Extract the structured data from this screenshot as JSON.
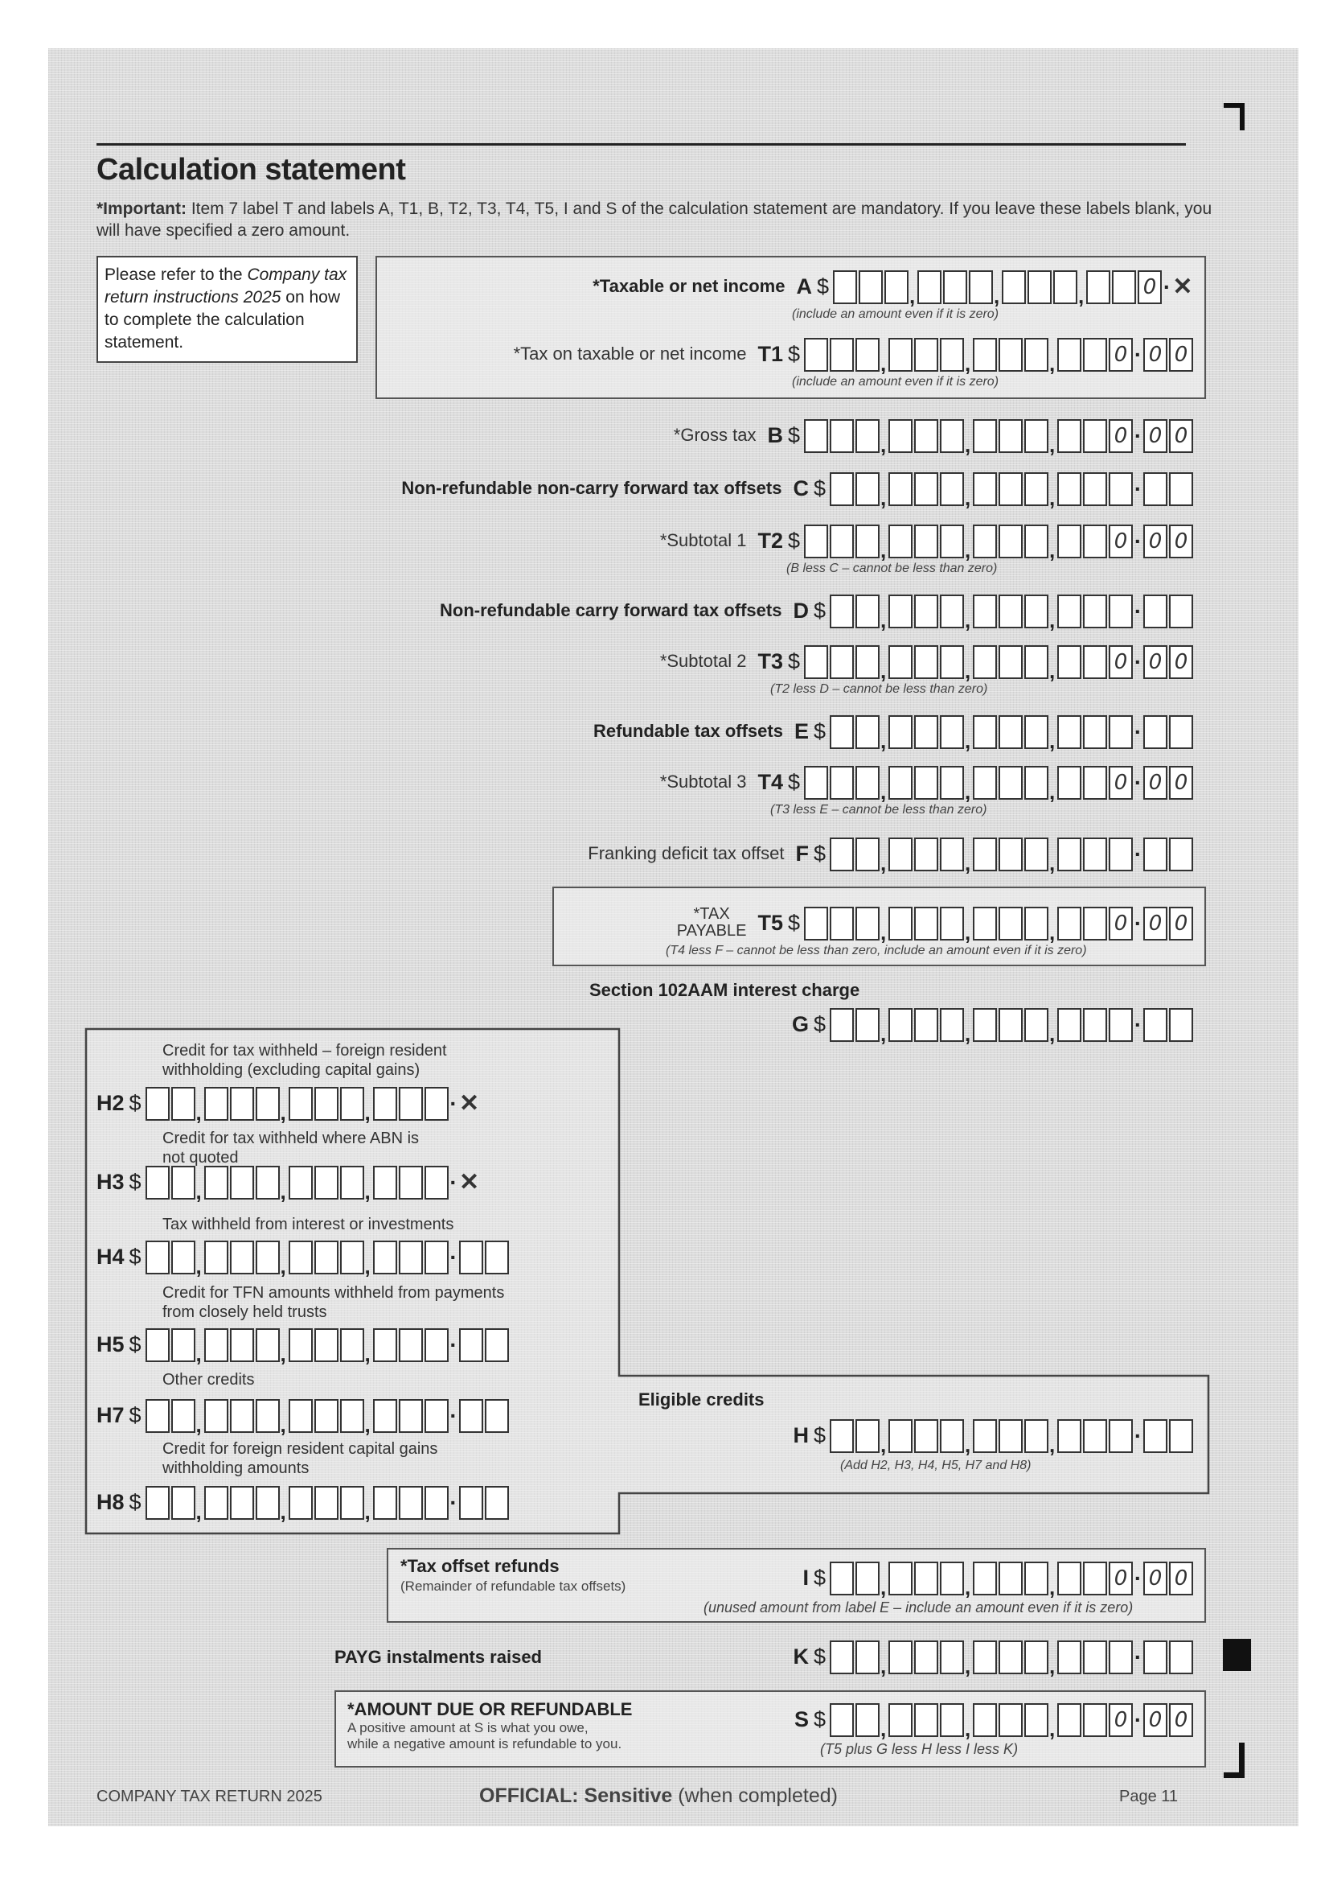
{
  "title": "Calculation statement",
  "important": {
    "prefix": "*Important:",
    "text": " Item 7 label T and labels A, T1, B, T2, T3, T4, T5, I and S of the calculation statement are mandatory. If you leave these labels blank, you will have specified a zero amount."
  },
  "refer": {
    "a": "Please refer to the ",
    "b": "Company tax return instructions 2025",
    "c": " on how to complete the calculation statement."
  },
  "fields": {
    "A": {
      "label": "*Taxable or net income",
      "code": "A",
      "last": "0",
      "cents": "crossed",
      "note": "(include an amount even if it is zero)"
    },
    "T1": {
      "label": "*Tax on taxable or net income",
      "code": "T1",
      "last": "0",
      "cents": "00",
      "note": "(include an amount even if it is zero)"
    },
    "B": {
      "label": "*Gross tax",
      "code": "B",
      "last": "0",
      "cents": "00"
    },
    "C": {
      "label": "Non-refundable non-carry forward tax offsets",
      "code": "C",
      "last": "",
      "cents": ""
    },
    "T2": {
      "label": "*Subtotal 1",
      "code": "T2",
      "last": "0",
      "cents": "00",
      "note": "(B less C – cannot be less than zero)"
    },
    "D": {
      "label": "Non-refundable carry forward tax offsets",
      "code": "D",
      "last": "",
      "cents": ""
    },
    "T3": {
      "label": "*Subtotal 2",
      "code": "T3",
      "last": "0",
      "cents": "00",
      "note": "(T2 less D – cannot be less than zero)"
    },
    "E": {
      "label": "Refundable tax offsets",
      "code": "E",
      "last": "",
      "cents": ""
    },
    "T4": {
      "label": "*Subtotal 3",
      "code": "T4",
      "last": "0",
      "cents": "00",
      "note": "(T3 less E – cannot be less than zero)"
    },
    "F": {
      "label": "Franking deficit tax offset",
      "code": "F",
      "last": "",
      "cents": ""
    },
    "T5": {
      "label_1": "*TAX",
      "label_2": "PAYABLE",
      "code": "T5",
      "last": "0",
      "cents": "00",
      "note": "(T4 less F – cannot be less than zero, include an amount even if it is zero)"
    },
    "G": {
      "label": "Section 102AAM interest charge",
      "code": "G",
      "last": "",
      "cents": ""
    },
    "H2": {
      "desc": "Credit for tax withheld – foreign resident withholding (excluding capital gains)",
      "code": "H2",
      "last": "",
      "cents": "crossed"
    },
    "H3": {
      "desc": "Credit for tax withheld where ABN is not quoted",
      "code": "H3",
      "last": "",
      "cents": "crossed"
    },
    "H4": {
      "desc": "Tax withheld from interest or investments",
      "code": "H4",
      "last": "",
      "cents": ""
    },
    "H5": {
      "desc": "Credit for TFN amounts withheld from payments from closely held trusts",
      "code": "H5",
      "last": "",
      "cents": ""
    },
    "H7": {
      "desc": "Other credits",
      "code": "H7",
      "last": "",
      "cents": ""
    },
    "H8": {
      "desc": "Credit for foreign resident capital gains withholding amounts",
      "code": "H8",
      "last": "",
      "cents": ""
    },
    "H": {
      "label": "Eligible credits",
      "code": "H",
      "last": "",
      "cents": "",
      "note": "(Add H2, H3, H4, H5, H7 and H8)"
    },
    "I": {
      "label": "*Tax offset refunds",
      "sub": "(Remainder of refundable tax offsets)",
      "code": "I",
      "last": "0",
      "cents": "00",
      "note": "(unused amount from label E – include an amount even if it is zero)"
    },
    "K": {
      "label": "PAYG instalments raised",
      "code": "K",
      "last": "",
      "cents": ""
    },
    "S": {
      "label": "*AMOUNT DUE OR REFUNDABLE",
      "sub_1": "A positive amount at S is what you owe,",
      "sub_2": "while a negative amount is refundable to you.",
      "code": "S",
      "last": "0",
      "cents": "00",
      "note": "(T5 plus G less H less I less K)"
    }
  },
  "dollar_sign": "$",
  "footer": {
    "left": "COMPANY TAX RETURN 2025",
    "center_bold": "OFFICIAL: Sensitive",
    "center_rest": " (when completed)",
    "right": "Page 11"
  }
}
